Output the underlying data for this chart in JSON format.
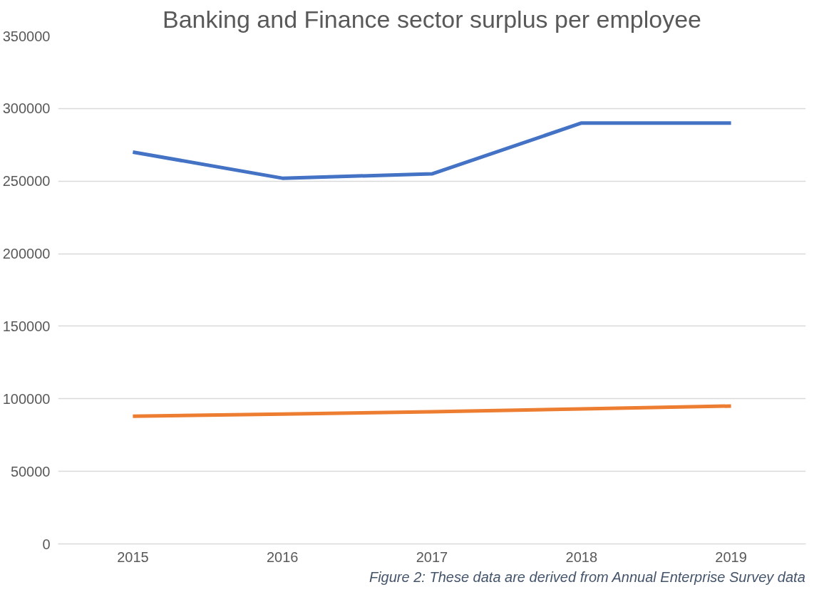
{
  "chart_data": {
    "type": "line",
    "title": "Banking and Finance sector surplus per employee",
    "categories": [
      "2015",
      "2016",
      "2017",
      "2018",
      "2019"
    ],
    "series": [
      {
        "color": "#4472c4",
        "values": [
          270000,
          252000,
          255000,
          290000,
          290000
        ]
      },
      {
        "color": "#ed7d31",
        "values": [
          88000,
          89500,
          91000,
          93000,
          95000
        ]
      }
    ],
    "ylim": [
      0,
      350000
    ],
    "yticks": [
      0,
      50000,
      100000,
      150000,
      200000,
      250000,
      300000,
      350000
    ],
    "grid": "y",
    "marker": "none",
    "line_style": "solid",
    "annotations": [
      "Figure 2: These data are derived from Annual Enterprise Survey data"
    ]
  }
}
